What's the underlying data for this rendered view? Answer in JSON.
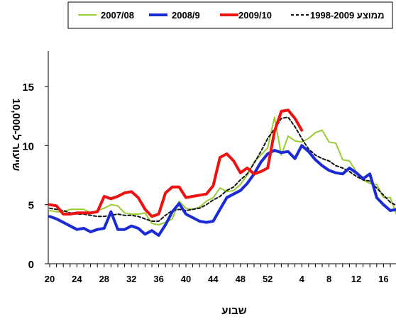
{
  "chart_data": {
    "type": "line",
    "title": "",
    "xlabel": "שבוע",
    "ylabel": "שיעור ל-10,000",
    "ylim": [
      0,
      18
    ],
    "yticks": [
      0,
      5,
      10,
      15
    ],
    "xtick_labels": [
      "20",
      "24",
      "28",
      "32",
      "36",
      "40",
      "44",
      "48",
      "52",
      "4",
      "8",
      "12",
      "16"
    ],
    "x_weeks": [
      "20",
      "21",
      "22",
      "23",
      "24",
      "25",
      "26",
      "27",
      "28",
      "29",
      "30",
      "31",
      "32",
      "33",
      "34",
      "35",
      "36",
      "37",
      "38",
      "39",
      "40",
      "41",
      "42",
      "43",
      "44",
      "45",
      "46",
      "47",
      "48",
      "49",
      "50",
      "51",
      "52",
      "53",
      "1",
      "2",
      "3",
      "4",
      "5",
      "6",
      "7",
      "8",
      "9",
      "10",
      "11",
      "12",
      "13",
      "14",
      "15",
      "16",
      "17",
      "18",
      "19"
    ],
    "legend_position": "top",
    "grid": false,
    "series": [
      {
        "name": "2007/08",
        "color": "#99cc33",
        "style": "solid",
        "values": [
          4.5,
          4.4,
          4.4,
          4.6,
          4.6,
          4.6,
          4.3,
          4.5,
          4.7,
          5.0,
          4.9,
          4.3,
          4.2,
          4.2,
          4.3,
          3.4,
          3.3,
          3.5,
          3.8,
          5.3,
          4.7,
          4.6,
          4.8,
          5.3,
          5.6,
          6.4,
          6.1,
          6.2,
          6.7,
          7.5,
          8.6,
          9.2,
          9.8,
          12.4,
          9.2,
          10.8,
          10.4,
          10.3,
          10.6,
          11.1,
          11.3,
          10.3,
          10.2,
          8.8,
          8.7,
          7.8,
          7.1,
          6.8,
          6.7,
          5.6,
          5.6,
          4.0,
          4.5
        ]
      },
      {
        "name": "2008/9",
        "color": "#1a2bd6",
        "style": "solid",
        "values": [
          4.0,
          3.8,
          3.5,
          3.2,
          2.9,
          3.0,
          2.7,
          2.9,
          3.0,
          4.4,
          2.9,
          2.9,
          3.2,
          3.0,
          2.5,
          2.8,
          2.4,
          3.3,
          4.4,
          5.1,
          4.2,
          3.9,
          3.6,
          3.5,
          3.6,
          4.6,
          5.6,
          5.9,
          6.2,
          6.8,
          7.6,
          8.6,
          9.3,
          9.6,
          9.4,
          9.5,
          8.9,
          10.0,
          9.5,
          8.8,
          8.3,
          7.9,
          7.7,
          7.6,
          8.1,
          7.7,
          7.2,
          7.6,
          5.6,
          5.0,
          4.5,
          4.6,
          4.2
        ]
      },
      {
        "name": "2009/10",
        "color": "#ee1111",
        "style": "solid",
        "values": [
          5.0,
          4.9,
          4.2,
          4.2,
          4.3,
          4.3,
          4.3,
          4.4,
          5.7,
          5.5,
          5.7,
          6.0,
          6.1,
          5.6,
          4.6,
          4.0,
          4.2,
          6.0,
          6.5,
          6.5,
          5.6,
          5.7,
          5.8,
          5.9,
          6.6,
          9.0,
          9.3,
          8.7,
          7.7,
          8.1,
          7.6,
          7.8,
          8.1,
          11.2,
          12.9,
          13.0,
          12.3,
          11.3
        ]
      },
      {
        "name": "ממוצע 1998-2009",
        "color": "#111111",
        "style": "dashed",
        "values": [
          4.7,
          4.6,
          4.5,
          4.3,
          4.2,
          4.2,
          4.1,
          4.0,
          4.0,
          4.1,
          4.2,
          4.1,
          4.1,
          4.0,
          3.8,
          3.6,
          3.6,
          4.1,
          4.5,
          4.6,
          4.5,
          4.6,
          4.7,
          5.0,
          5.4,
          5.7,
          6.2,
          6.5,
          7.1,
          7.6,
          8.5,
          9.5,
          10.6,
          11.4,
          12.3,
          12.4,
          11.6,
          10.6,
          9.7,
          9.2,
          8.9,
          8.7,
          8.3,
          8.1,
          7.8,
          7.4,
          7.1,
          7.0,
          6.4,
          5.8,
          5.2,
          4.9,
          4.9
        ]
      }
    ]
  }
}
